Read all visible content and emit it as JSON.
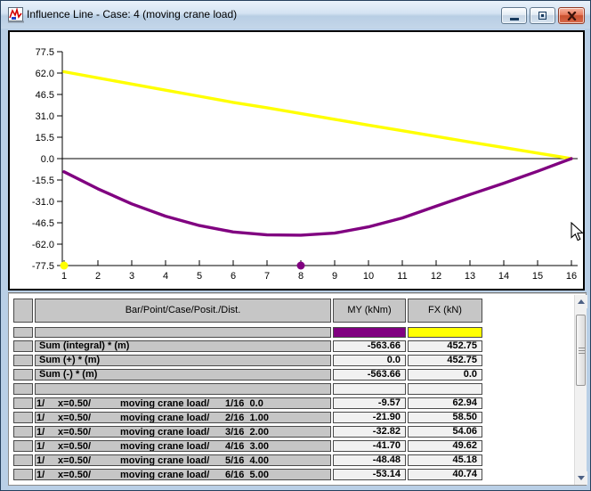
{
  "window": {
    "title": "Influence Line - Case: 4 (moving crane load)"
  },
  "chart": {
    "y_tick_labels": [
      "77.5",
      "62.0",
      "46.5",
      "31.0",
      "15.5",
      "0.0",
      "-15.5",
      "-31.0",
      "-46.5",
      "-62.0",
      "-77.5"
    ],
    "x_tick_labels": [
      "1",
      "2",
      "3",
      "4",
      "5",
      "6",
      "7",
      "8",
      "9",
      "10",
      "11",
      "12",
      "13",
      "14",
      "15",
      "16"
    ],
    "axis_color": "#000000",
    "axis_markers": [
      {
        "x": 1,
        "color": "#ffff00"
      },
      {
        "x": 8,
        "color": "#800080"
      }
    ]
  },
  "chart_data": {
    "type": "line",
    "title": "",
    "xlabel": "",
    "ylabel": "",
    "grid": false,
    "x": [
      1,
      2,
      3,
      4,
      5,
      6,
      7,
      8,
      9,
      10,
      11,
      12,
      13,
      14,
      15,
      16
    ],
    "xlim": [
      1,
      16
    ],
    "ylim": [
      -77.5,
      77.5
    ],
    "y_ticks": [
      77.5,
      62.0,
      46.5,
      31.0,
      15.5,
      0.0,
      -15.5,
      -31.0,
      -46.5,
      -62.0,
      -77.5
    ],
    "series": [
      {
        "name": "MY (kNm)",
        "color": "#800080",
        "values": [
          -9.57,
          -21.9,
          -32.82,
          -41.7,
          -48.48,
          -53.14,
          -55.3,
          -55.5,
          -54.0,
          -49.5,
          -43.0,
          -34.5,
          -26.0,
          -17.8,
          -9.2,
          0.0
        ]
      },
      {
        "name": "FX (kN)",
        "color": "#ffff00",
        "values": [
          62.94,
          58.5,
          54.06,
          49.62,
          45.18,
          40.74,
          36.9,
          32.7,
          28.5,
          24.3,
          20.2,
          16.1,
          12.0,
          8.0,
          4.0,
          0.0
        ]
      }
    ]
  },
  "table": {
    "headers": {
      "col1": "Bar/Point/Case/Posit./Dist.",
      "my": "MY (kNm)",
      "fx": "FX (kN)"
    },
    "legend_colors": {
      "my": "#800080",
      "fx": "#ffff00"
    },
    "sum_rows": [
      {
        "label": "Sum (integral) * (m)",
        "my": "-563.66",
        "fx": "452.75"
      },
      {
        "label": "Sum (+) * (m)",
        "my": "0.0",
        "fx": "452.75"
      },
      {
        "label": "Sum (-) * (m)",
        "my": "-563.66",
        "fx": "0.0"
      }
    ],
    "data_rows": [
      {
        "bar": "1/",
        "x": "x=0.50/",
        "case": "moving crane load/",
        "position": "1/16  0.0",
        "my": "-9.57",
        "fx": "62.94"
      },
      {
        "bar": "1/",
        "x": "x=0.50/",
        "case": "moving crane load/",
        "position": "2/16  1.00",
        "my": "-21.90",
        "fx": "58.50"
      },
      {
        "bar": "1/",
        "x": "x=0.50/",
        "case": "moving crane load/",
        "position": "3/16  2.00",
        "my": "-32.82",
        "fx": "54.06"
      },
      {
        "bar": "1/",
        "x": "x=0.50/",
        "case": "moving crane load/",
        "position": "4/16  3.00",
        "my": "-41.70",
        "fx": "49.62"
      },
      {
        "bar": "1/",
        "x": "x=0.50/",
        "case": "moving crane load/",
        "position": "5/16  4.00",
        "my": "-48.48",
        "fx": "45.18"
      },
      {
        "bar": "1/",
        "x": "x=0.50/",
        "case": "moving crane load/",
        "position": "6/16  5.00",
        "my": "-53.14",
        "fx": "40.74"
      }
    ]
  }
}
